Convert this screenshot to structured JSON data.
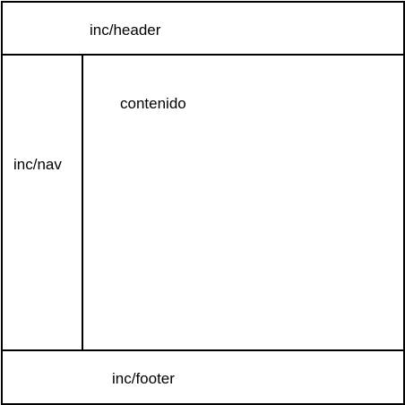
{
  "diagram": {
    "header": {
      "label": "inc/header"
    },
    "nav": {
      "label": "inc/nav"
    },
    "content": {
      "label": "contenido"
    },
    "footer": {
      "label": "inc/footer"
    }
  },
  "colors": {
    "stroke": "#000000",
    "background": "#ffffff"
  }
}
